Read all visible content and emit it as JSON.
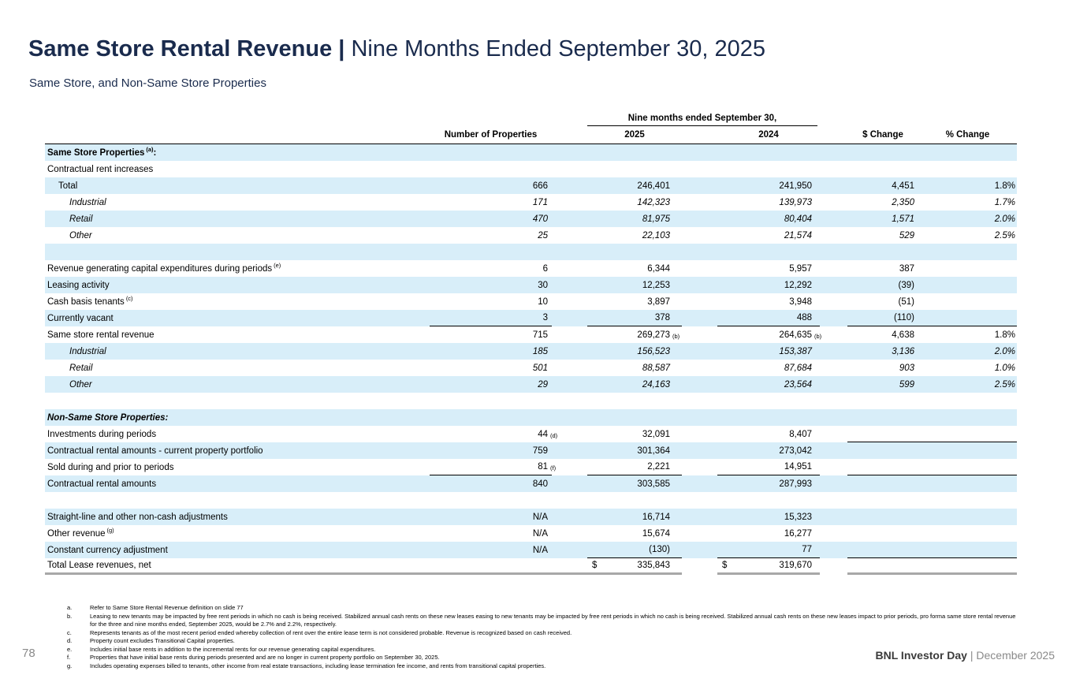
{
  "colors": {
    "title_navy": "#1a2b4d",
    "row_shade": "#d8eef9",
    "rule_gray": "#a8a8a8",
    "footer_gray": "#8a8a8a"
  },
  "title": {
    "main": "Same Store Rental Revenue",
    "divider": " | ",
    "rest": "Nine Months Ended September 30, 2025"
  },
  "subtitle": "Same Store, and Non-Same Store Properties",
  "table": {
    "span_header": "Nine months ended September 30,",
    "col_headers": {
      "props": "Number of Properties",
      "y2025": "2025",
      "y2024": "2024",
      "chg": "$ Change",
      "pct": "% Change"
    },
    "rows": [
      {
        "label": "Same Store Properties",
        "sup": "(a)",
        "after": ":",
        "bold": true,
        "shaded": true
      },
      {
        "label": "Contractual rent increases"
      },
      {
        "label": "Total",
        "indent": 1,
        "shaded": true,
        "props": "666",
        "y2025": "246,401",
        "y2024": "241,950",
        "chg": "4,451",
        "pct": "1.8%"
      },
      {
        "label": "Industrial",
        "indent": 2,
        "italic": true,
        "props": "171",
        "y2025": "142,323",
        "y2024": "139,973",
        "chg": "2,350",
        "pct": "1.7%"
      },
      {
        "label": "Retail",
        "indent": 2,
        "italic": true,
        "shaded": true,
        "props": "470",
        "y2025": "81,975",
        "y2024": "80,404",
        "chg": "1,571",
        "pct": "2.0%"
      },
      {
        "label": "Other",
        "indent": 2,
        "italic": true,
        "props": "25",
        "y2025": "22,103",
        "y2024": "21,574",
        "chg": "529",
        "pct": "2.5%"
      },
      {
        "label": "",
        "shaded": true
      },
      {
        "label": "Revenue generating capital expenditures during periods",
        "sup": "(e)",
        "props": "6",
        "y2025": "6,344",
        "y2024": "5,957",
        "chg": "387"
      },
      {
        "label": "Leasing activity",
        "shaded": true,
        "props": "30",
        "y2025": "12,253",
        "y2024": "12,292",
        "chg": "(39)"
      },
      {
        "label": "Cash basis tenants",
        "sup": "(c)",
        "props": "10",
        "y2025": "3,897",
        "y2024": "3,948",
        "chg": "(51)"
      },
      {
        "label": "Currently vacant",
        "shaded": true,
        "props": "3",
        "y2025": "378",
        "y2024": "488",
        "chg": "(110)",
        "ul": [
          "props",
          "y2025",
          "y2024",
          "chg",
          "pct"
        ]
      },
      {
        "label": "Same store rental revenue",
        "props": "715",
        "y2025": "269,273",
        "y2025_sup": "(b)",
        "y2024": "264,635",
        "y2024_sup": "(b)",
        "chg": "4,638",
        "pct": "1.8%"
      },
      {
        "label": "Industrial",
        "indent": 2,
        "italic": true,
        "shaded": true,
        "props": "185",
        "y2025": "156,523",
        "y2024": "153,387",
        "chg": "3,136",
        "pct": "2.0%"
      },
      {
        "label": "Retail",
        "indent": 2,
        "italic": true,
        "props": "501",
        "y2025": "88,587",
        "y2024": "87,684",
        "chg": "903",
        "pct": "1.0%"
      },
      {
        "label": "Other",
        "indent": 2,
        "italic": true,
        "shaded": true,
        "props": "29",
        "y2025": "24,163",
        "y2024": "23,564",
        "chg": "599",
        "pct": "2.5%"
      },
      {
        "label": ""
      },
      {
        "label": "Non-Same Store Properties:",
        "bold": true,
        "italic": true,
        "shaded": true
      },
      {
        "label": "Investments during periods",
        "props": "44",
        "props_sup": "(d)",
        "y2025": "32,091",
        "y2024": "8,407",
        "ul": [
          "chg",
          "pct"
        ]
      },
      {
        "label": "Contractual rental amounts - current property portfolio",
        "shaded": true,
        "props": "759",
        "y2025": "301,364",
        "y2024": "273,042"
      },
      {
        "label": "Sold during and prior to periods",
        "props": "81",
        "props_sup": "(f)",
        "y2025": "2,221",
        "y2024": "14,951",
        "ul": [
          "props",
          "y2025",
          "y2024",
          "chg",
          "pct"
        ]
      },
      {
        "label": "Contractual rental amounts",
        "shaded": true,
        "props": "840",
        "y2025": "303,585",
        "y2024": "287,993"
      },
      {
        "label": ""
      },
      {
        "label": "Straight-line and other non-cash adjustments",
        "shaded": true,
        "props": "N/A",
        "y2025": "16,714",
        "y2024": "15,323"
      },
      {
        "label": "Other revenue",
        "sup": "(g)",
        "props": "N/A",
        "y2025": "15,674",
        "y2024": "16,277"
      },
      {
        "label": "Constant currency adjustment",
        "shaded": true,
        "props": "N/A",
        "y2025": "(130)",
        "y2024": "77",
        "ul": [
          "y2025",
          "y2024",
          "chg",
          "pct"
        ]
      },
      {
        "label": "Total Lease revenues, net",
        "y2025": "335,843",
        "y2025_dollar": "$",
        "y2024": "319,670",
        "y2024_dollar": "$",
        "total": true
      }
    ]
  },
  "footnotes": [
    {
      "letter": "a.",
      "text": "Refer to Same Store Rental Revenue definition on slide 77"
    },
    {
      "letter": "b.",
      "text": "Leasing to new tenants may be impacted by free rent periods in which no cash is being received. Stabilized annual cash rents on these new leases easing to new tenants may be impacted by free rent periods in which no cash is being received. Stabilized annual cash rents on these new leases impact to prior periods, pro forma same store rental revenue for the three and nine months ended, September 2025, would be 2.7% and 2.2%, respectively."
    },
    {
      "letter": "c.",
      "text": "Represents tenants as of the most recent period ended whereby collection of rent over the entire lease term is not considered probable. Revenue is recognized based on cash received."
    },
    {
      "letter": "d.",
      "text": "Property count excludes Transitional Capital properties."
    },
    {
      "letter": "e.",
      "text": "Includes initial base rents in addition to the incremental rents for our revenue generating capital expenditures."
    },
    {
      "letter": "f.",
      "text": "Properties that have initial base rents during periods presented and are no longer in current property portfolio on September 30, 2025."
    },
    {
      "letter": "g.",
      "text": "Includes operating expenses billed to tenants, other income from real estate transactions, including lease termination fee income, and rents from transitional capital properties."
    }
  ],
  "footer": {
    "page_number": "78",
    "brand": "BNL Investor Day",
    "suffix": " | December 2025"
  }
}
